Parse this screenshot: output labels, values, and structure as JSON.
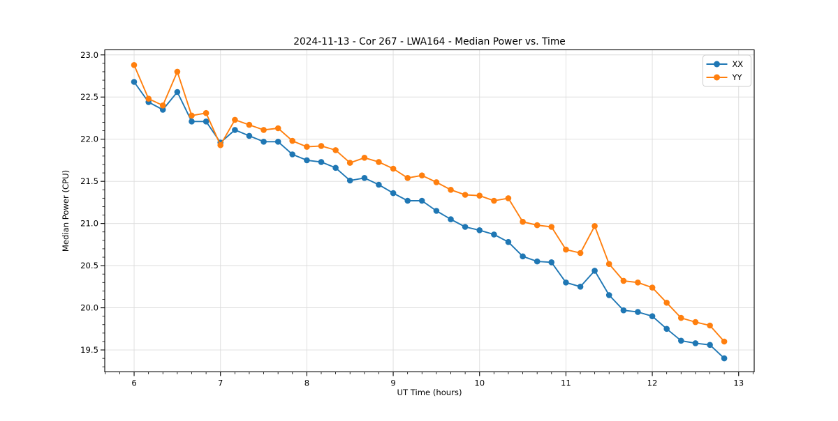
{
  "chart_data": {
    "type": "line",
    "title": "2024-11-13 - Cor 267 - LWA164 - Median Power vs. Time",
    "xlabel": "UT Time (hours)",
    "ylabel": "Median Power (CPU)",
    "x": [
      6.0,
      6.167,
      6.333,
      6.5,
      6.667,
      6.833,
      7.0,
      7.167,
      7.333,
      7.5,
      7.667,
      7.833,
      8.0,
      8.167,
      8.333,
      8.5,
      8.667,
      8.833,
      9.0,
      9.167,
      9.333,
      9.5,
      9.667,
      9.833,
      10.0,
      10.167,
      10.333,
      10.5,
      10.667,
      10.833,
      11.0,
      11.167,
      11.333,
      11.5,
      11.667,
      11.833,
      12.0,
      12.167,
      12.333,
      12.5,
      12.667,
      12.833
    ],
    "series": [
      {
        "name": "XX",
        "color": "#1f77b4",
        "values": [
          22.68,
          22.44,
          22.35,
          22.56,
          22.21,
          22.21,
          21.96,
          22.11,
          22.04,
          21.97,
          21.97,
          21.82,
          21.75,
          21.73,
          21.66,
          21.51,
          21.54,
          21.46,
          21.36,
          21.27,
          21.27,
          21.15,
          21.05,
          20.96,
          20.92,
          20.87,
          20.78,
          20.61,
          20.55,
          20.54,
          20.3,
          20.25,
          20.44,
          20.15,
          19.97,
          19.95,
          19.9,
          19.75,
          19.61,
          19.58,
          19.56,
          19.4
        ]
      },
      {
        "name": "YY",
        "color": "#ff7f0e",
        "values": [
          22.88,
          22.48,
          22.4,
          22.8,
          22.28,
          22.31,
          21.93,
          22.23,
          22.17,
          22.11,
          22.13,
          21.98,
          21.91,
          21.92,
          21.87,
          21.72,
          21.78,
          21.73,
          21.65,
          21.54,
          21.57,
          21.49,
          21.4,
          21.34,
          21.33,
          21.27,
          21.3,
          21.02,
          20.98,
          20.96,
          20.69,
          20.65,
          20.97,
          20.52,
          20.32,
          20.3,
          20.24,
          20.06,
          19.88,
          19.83,
          19.79,
          19.6
        ]
      }
    ],
    "x_ticks": [
      6,
      7,
      8,
      9,
      10,
      11,
      12,
      13
    ],
    "y_ticks": [
      19.5,
      20.0,
      20.5,
      21.0,
      21.5,
      22.0,
      22.5,
      23.0
    ],
    "xlim": [
      5.66,
      13.18
    ],
    "ylim": [
      19.24,
      23.06
    ],
    "grid": true,
    "legend": {
      "position": "upper right",
      "entries": [
        "XX",
        "YY"
      ]
    }
  },
  "style": {
    "grid_color": "#dcdcdc",
    "spine_color": "#000000",
    "legend_border_color": "#cccccc",
    "background_color": "#ffffff"
  }
}
